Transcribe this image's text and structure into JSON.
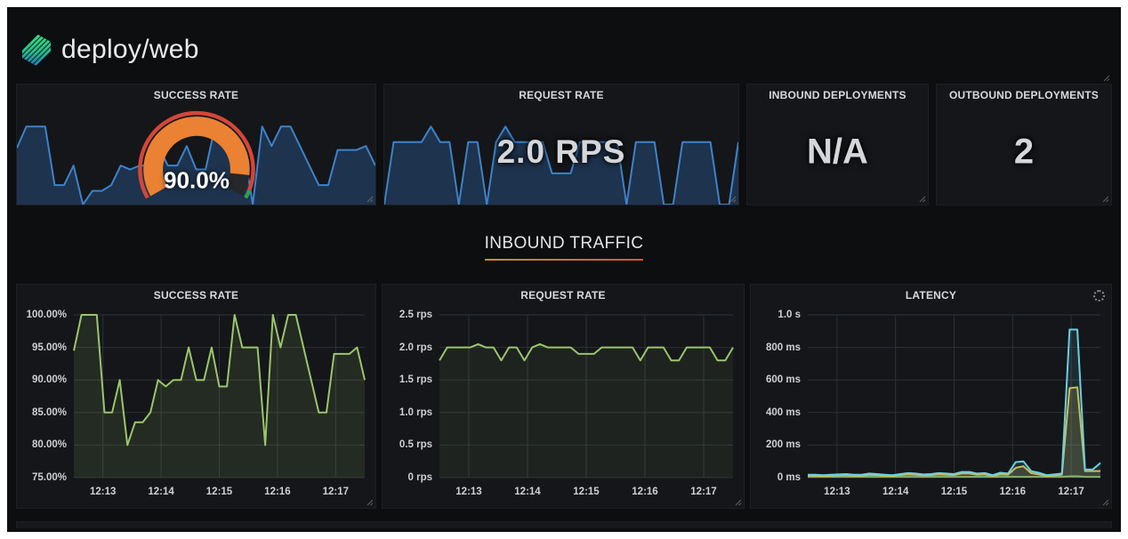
{
  "header": {
    "title": "deploy/web"
  },
  "colors": {
    "spark_blue": "#3d82c9",
    "spark_fill": "rgba(55,120,200,0.30)",
    "green_line": "#9bc56b",
    "gauge_orange": "#eb8132",
    "gauge_red": "#d4473a",
    "gauge_green": "#2f9e4f",
    "gauge_rest": "#26282b",
    "underline_from": "#c79121",
    "underline_to": "#e0531f",
    "grid": "#2e3136"
  },
  "top_row": {
    "success_rate": {
      "title": "SUCCESS RATE",
      "gauge_label": "90.0%",
      "gauge_percent": 90,
      "gauge_threshold_percent": 96.5,
      "spark_values": [
        94.5,
        100,
        100,
        100,
        85,
        85,
        90,
        80,
        83.5,
        83.5,
        85,
        90,
        89,
        90,
        90,
        95,
        90,
        90,
        95,
        89,
        89,
        100,
        95,
        95,
        95,
        80,
        100,
        95,
        100,
        100,
        95,
        90,
        85,
        85,
        94,
        94,
        94,
        95,
        90
      ]
    },
    "request_rate": {
      "title": "REQUEST RATE",
      "value": "2.0 RPS",
      "spark_values": [
        1.8,
        2.0,
        2.0,
        2.0,
        2.0,
        2.05,
        2.0,
        2.0,
        1.8,
        2.0,
        2.0,
        1.8,
        2.0,
        2.05,
        2.0,
        2.0,
        2.0,
        2.0,
        1.9,
        1.9,
        1.9,
        2.0,
        2.0,
        2.0,
        2.0,
        2.0,
        1.8,
        2.0,
        2.0,
        2.0,
        1.8,
        1.8,
        2.0,
        2.0,
        2.0,
        2.0,
        1.8,
        1.8,
        2.0
      ]
    },
    "inbound_deployments": {
      "title": "INBOUND DEPLOYMENTS",
      "value": "N/A"
    },
    "outbound_deployments": {
      "title": "OUTBOUND DEPLOYMENTS",
      "value": "2"
    }
  },
  "section": {
    "title": "INBOUND TRAFFIC"
  },
  "chart_data": [
    {
      "type": "line",
      "title": "SUCCESS RATE",
      "x_ticks": [
        "12:13",
        "12:14",
        "12:15",
        "12:16",
        "12:17"
      ],
      "y_ticks": [
        "100.00%",
        "95.00%",
        "90.00%",
        "85.00%",
        "80.00%",
        "75.00%"
      ],
      "ylim": [
        75,
        100
      ],
      "grid": true,
      "legend": "none",
      "series": [
        {
          "name": "success-rate",
          "color": "#9bc56b",
          "fill_opacity": 0.12,
          "values": [
            94.5,
            100,
            100,
            100,
            85,
            85,
            90,
            80,
            83.5,
            83.5,
            85,
            90,
            89,
            90,
            90,
            95,
            90,
            90,
            95,
            89,
            89,
            100,
            95,
            95,
            95,
            80,
            100,
            95,
            100,
            100,
            95,
            90,
            85,
            85,
            94,
            94,
            94,
            95,
            90
          ]
        }
      ]
    },
    {
      "type": "line",
      "title": "REQUEST RATE",
      "x_ticks": [
        "12:13",
        "12:14",
        "12:15",
        "12:16",
        "12:17"
      ],
      "y_ticks": [
        "2.5 rps",
        "2.0 rps",
        "1.5 rps",
        "1.0 rps",
        "0.5 rps",
        "0 rps"
      ],
      "ylim": [
        0,
        2.5
      ],
      "grid": true,
      "legend": "none",
      "series": [
        {
          "name": "request-rate",
          "color": "#9bc56b",
          "fill_opacity": 0.08,
          "values": [
            1.8,
            2.0,
            2.0,
            2.0,
            2.0,
            2.05,
            2.0,
            2.0,
            1.8,
            2.0,
            2.0,
            1.8,
            2.0,
            2.05,
            2.0,
            2.0,
            2.0,
            2.0,
            1.9,
            1.9,
            1.9,
            2.0,
            2.0,
            2.0,
            2.0,
            2.0,
            1.8,
            2.0,
            2.0,
            2.0,
            1.8,
            1.8,
            2.0,
            2.0,
            2.0,
            2.0,
            1.8,
            1.8,
            2.0
          ]
        }
      ]
    },
    {
      "type": "line",
      "title": "LATENCY",
      "x_ticks": [
        "12:13",
        "12:14",
        "12:15",
        "12:16",
        "12:17"
      ],
      "y_ticks": [
        "1.0 s",
        "800 ms",
        "600 ms",
        "400 ms",
        "200 ms",
        "0 ms"
      ],
      "ylim": [
        0,
        1000
      ],
      "grid": true,
      "legend": "none",
      "series": [
        {
          "name": "latency-green",
          "color": "#7aa85c",
          "fill_opacity": 0.25,
          "values": [
            5,
            5,
            5,
            5,
            5,
            5,
            5,
            5,
            5,
            5,
            5,
            5,
            5,
            5,
            5,
            5,
            5,
            5,
            5,
            5,
            5,
            5,
            5,
            5,
            5,
            5,
            5,
            5,
            5,
            5,
            5,
            5,
            5,
            5,
            8,
            8,
            5,
            5,
            5
          ]
        },
        {
          "name": "latency-yellow",
          "color": "#d8bb4a",
          "fill_opacity": 0.18,
          "values": [
            12,
            12,
            10,
            12,
            14,
            16,
            12,
            12,
            18,
            16,
            12,
            10,
            16,
            20,
            18,
            14,
            16,
            20,
            18,
            16,
            25,
            25,
            18,
            20,
            10,
            20,
            18,
            60,
            70,
            28,
            20,
            10,
            14,
            18,
            550,
            555,
            40,
            40,
            40
          ]
        },
        {
          "name": "latency-cyan",
          "color": "#6bcfe0",
          "fill_opacity": 0.12,
          "values": [
            18,
            18,
            15,
            18,
            20,
            22,
            18,
            18,
            25,
            22,
            18,
            15,
            22,
            28,
            25,
            20,
            22,
            28,
            25,
            22,
            35,
            35,
            25,
            28,
            15,
            30,
            25,
            95,
            100,
            40,
            30,
            15,
            20,
            25,
            910,
            910,
            50,
            50,
            90
          ]
        }
      ]
    }
  ]
}
